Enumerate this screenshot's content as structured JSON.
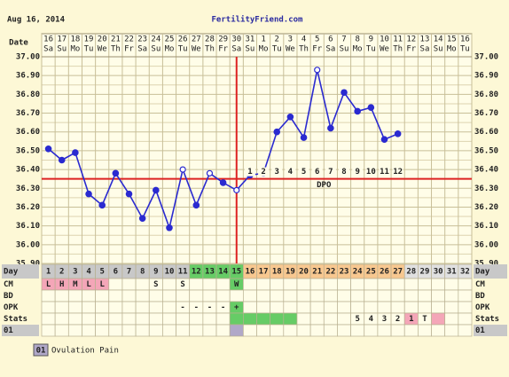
{
  "chart_data": {
    "type": "line",
    "date": "Aug 16, 2014",
    "title": "FertilityFriend.com",
    "date_label": "Date",
    "dates": [
      "16",
      "17",
      "18",
      "19",
      "20",
      "21",
      "22",
      "23",
      "24",
      "25",
      "26",
      "27",
      "28",
      "29",
      "30",
      "31",
      "1",
      "2",
      "3",
      "4",
      "5",
      "6",
      "7",
      "8",
      "9",
      "10",
      "11",
      "12",
      "13",
      "14",
      "15",
      "16"
    ],
    "weekdays": [
      "Sa",
      "Su",
      "Mo",
      "Tu",
      "We",
      "Th",
      "Fr",
      "Sa",
      "Su",
      "Mo",
      "Tu",
      "We",
      "Th",
      "Fr",
      "Sa",
      "Su",
      "Mo",
      "Tu",
      "We",
      "Th",
      "Fr",
      "Sa",
      "Su",
      "Mo",
      "Tu",
      "We",
      "Th",
      "Fr",
      "Sa",
      "Su",
      "Mo",
      "Tu"
    ],
    "values": [
      36.51,
      36.45,
      36.49,
      36.27,
      36.21,
      36.38,
      36.27,
      36.14,
      36.29,
      36.09,
      36.4,
      36.21,
      36.38,
      36.33,
      36.29,
      36.37,
      36.38,
      36.6,
      36.68,
      36.57,
      36.93,
      36.62,
      36.81,
      36.71,
      36.73,
      36.56,
      36.59,
      null,
      null,
      null,
      null,
      null
    ],
    "markers": [
      "filled",
      "filled",
      "filled",
      "filled",
      "filled",
      "filled",
      "filled",
      "filled",
      "filled",
      "filled",
      "open",
      "filled",
      "open",
      "filled",
      "open",
      "filled",
      "filled",
      "filled",
      "filled",
      "filled",
      "open",
      "filled",
      "filled",
      "filled",
      "filled",
      "filled",
      "filled",
      null,
      null,
      null,
      null,
      null
    ],
    "color": "#2a2ad0",
    "ylim": [
      35.9,
      37.0
    ],
    "yticks": [
      {
        "value": 37.0,
        "label": "37.00"
      },
      {
        "value": 36.9,
        "label": "36.90"
      },
      {
        "value": 36.8,
        "label": "36.80"
      },
      {
        "value": 36.7,
        "label": "36.70"
      },
      {
        "value": 36.6,
        "label": "36.60"
      },
      {
        "value": 36.5,
        "label": "36.50"
      },
      {
        "value": 36.4,
        "label": "36.40"
      },
      {
        "value": 36.3,
        "label": "36.30"
      },
      {
        "value": 36.2,
        "label": "36.20"
      },
      {
        "value": 36.1,
        "label": "36.10"
      },
      {
        "value": 36.0,
        "label": "36.00"
      },
      {
        "value": 35.9,
        "label": "35.90"
      }
    ],
    "grid": true,
    "coverline": 36.35,
    "ovulation_day": 15,
    "line_color": "#dd2222",
    "dpo": [
      null,
      null,
      null,
      null,
      null,
      null,
      null,
      null,
      null,
      null,
      null,
      null,
      null,
      null,
      null,
      1,
      2,
      3,
      4,
      5,
      6,
      7,
      8,
      9,
      10,
      11,
      12,
      null,
      null,
      null,
      null,
      null
    ],
    "dpo_label": "DPO",
    "rows": [
      {
        "label": "Day",
        "cells": [
          1,
          2,
          3,
          4,
          5,
          6,
          7,
          8,
          9,
          10,
          11,
          12,
          13,
          14,
          15,
          16,
          17,
          18,
          19,
          20,
          21,
          22,
          23,
          24,
          25,
          26,
          27,
          28,
          29,
          30,
          31,
          32
        ],
        "colors": [
          "#c8c8c8",
          "#c8c8c8",
          "#c8c8c8",
          "#c8c8c8",
          "#c8c8c8",
          "#c8c8c8",
          "#c8c8c8",
          "#c8c8c8",
          "#c8c8c8",
          "#c8c8c8",
          "#c8c8c8",
          "#66cc66",
          "#66cc66",
          "#66cc66",
          "#66cc66",
          "#f8c890",
          "#f8c890",
          "#f8c890",
          "#f8c890",
          "#f8c890",
          "#f8c890",
          "#f8c890",
          "#f8c890",
          "#f8c890",
          "#f8c890",
          "#f8c890",
          "#f8c890",
          "#e0e0e0",
          "#e0e0e0",
          "#e0e0e0",
          "#e0e0e0",
          "#e0e0e0"
        ]
      },
      {
        "label": "CM",
        "cells": [
          "L",
          "H",
          "M",
          "L",
          "L",
          null,
          null,
          null,
          "S",
          null,
          "S",
          null,
          null,
          null,
          "W",
          null,
          null,
          null,
          null,
          null,
          null,
          null,
          null,
          null,
          null,
          null,
          null,
          null,
          null,
          null,
          null,
          null
        ],
        "colors": [
          "#f4a6b8",
          "#f4a6b8",
          "#f4a6b8",
          "#f4a6b8",
          "#f4a6b8",
          null,
          null,
          null,
          null,
          null,
          null,
          null,
          null,
          null,
          "#66cc66",
          null,
          null,
          null,
          null,
          null,
          null,
          null,
          null,
          null,
          null,
          null,
          null,
          null,
          null,
          null,
          null,
          null
        ]
      },
      {
        "label": "BD",
        "cells": [
          null,
          null,
          null,
          null,
          null,
          null,
          null,
          null,
          null,
          null,
          null,
          null,
          null,
          null,
          null,
          null,
          null,
          null,
          null,
          null,
          null,
          null,
          null,
          null,
          null,
          null,
          null,
          null,
          null,
          null,
          null,
          null
        ],
        "colors": [
          null,
          null,
          null,
          null,
          null,
          null,
          null,
          null,
          null,
          null,
          null,
          null,
          null,
          null,
          null,
          null,
          null,
          null,
          null,
          null,
          null,
          null,
          null,
          null,
          null,
          null,
          null,
          null,
          null,
          null,
          null,
          null
        ]
      },
      {
        "label": "OPK",
        "cells": [
          null,
          null,
          null,
          null,
          null,
          null,
          null,
          null,
          null,
          null,
          "-",
          "-",
          "-",
          "-",
          "+",
          null,
          null,
          null,
          null,
          null,
          null,
          null,
          null,
          null,
          null,
          null,
          null,
          null,
          null,
          null,
          null,
          null
        ],
        "colors": [
          null,
          null,
          null,
          null,
          null,
          null,
          null,
          null,
          null,
          null,
          null,
          null,
          null,
          null,
          "#66cc66",
          null,
          null,
          null,
          null,
          null,
          null,
          null,
          null,
          null,
          null,
          null,
          null,
          null,
          null,
          null,
          null,
          null
        ]
      },
      {
        "label": "Stats",
        "cells": [
          null,
          null,
          null,
          null,
          null,
          null,
          null,
          null,
          null,
          null,
          null,
          null,
          null,
          null,
          null,
          null,
          null,
          null,
          null,
          null,
          null,
          null,
          null,
          "5",
          "4",
          "3",
          "2",
          "1",
          "T",
          null,
          null,
          null
        ],
        "colors": [
          null,
          null,
          null,
          null,
          null,
          null,
          null,
          null,
          null,
          null,
          null,
          null,
          null,
          null,
          "#66cc66",
          "#66cc66",
          "#66cc66",
          "#66cc66",
          "#66cc66",
          null,
          null,
          null,
          null,
          null,
          null,
          null,
          null,
          "#f4a6b8",
          null,
          "#f4a6b8",
          null,
          null
        ]
      },
      {
        "label": "01",
        "cells": [
          null,
          null,
          null,
          null,
          null,
          null,
          null,
          null,
          null,
          null,
          null,
          null,
          null,
          null,
          null,
          null,
          null,
          null,
          null,
          null,
          null,
          null,
          null,
          null,
          null,
          null,
          null,
          null,
          null,
          null,
          null,
          null
        ],
        "colors": [
          null,
          null,
          null,
          null,
          null,
          null,
          null,
          null,
          null,
          null,
          null,
          null,
          null,
          null,
          "#b0a8c8",
          null,
          null,
          null,
          null,
          null,
          null,
          null,
          null,
          null,
          null,
          null,
          null,
          null,
          null,
          null,
          null,
          null
        ]
      }
    ],
    "legend": [
      {
        "code": "01",
        "text": "Ovulation Pain"
      }
    ]
  }
}
